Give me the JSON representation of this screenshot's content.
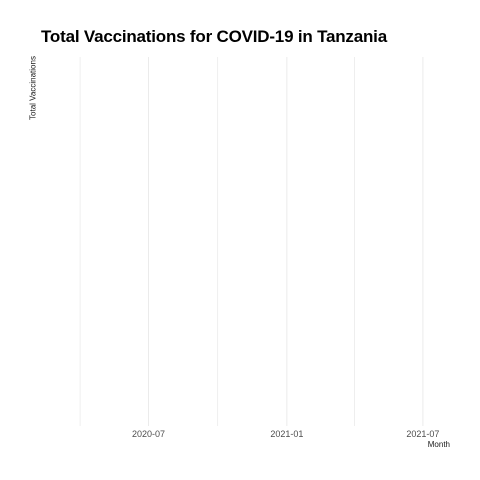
{
  "chart_data": {
    "type": "line",
    "title": "Total Vaccinations for COVID-19 in Tanzania",
    "xlabel": "Month",
    "ylabel": "Total Vaccinations",
    "x_ticks": [
      "2020-07",
      "2021-01",
      "2021-07"
    ],
    "x_tick_dates": [
      "2020-07-01",
      "2021-01-01",
      "2021-07-01"
    ],
    "x_minor_dates": [
      "2020-04-01",
      "2020-10-01",
      "2021-04-01"
    ],
    "xlim": [
      "2020-02-05",
      "2021-08-30"
    ],
    "series": [],
    "grid": true,
    "legend": "none",
    "gridline_color": "#ebebeb",
    "text_color": "#4d4d4d"
  }
}
